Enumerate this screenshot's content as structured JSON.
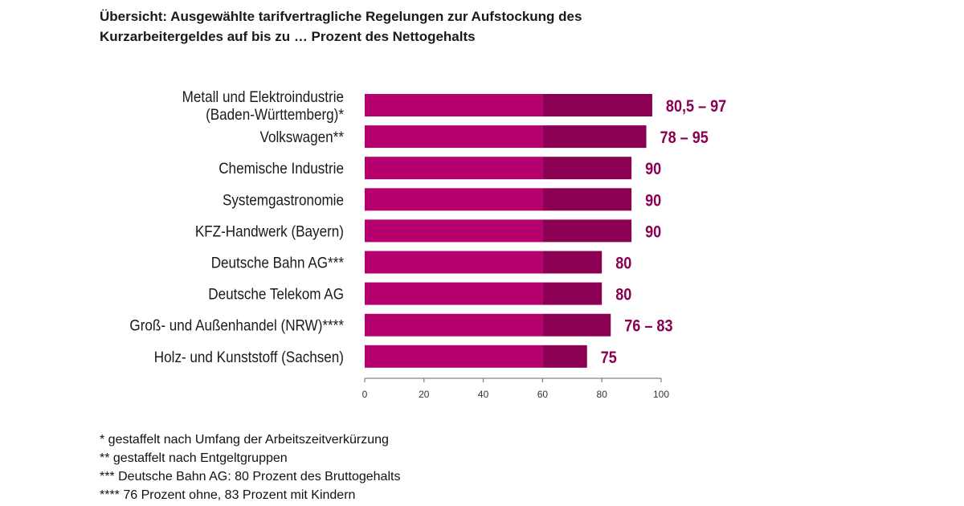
{
  "title": {
    "line1": "Übersicht: Ausgewählte tarifvertragliche Regelungen zur Aufstockung des",
    "line2": "Kurzarbeitergeldes auf bis zu … Prozent des Nettogehalts"
  },
  "colors": {
    "base": "#b5006e",
    "upper": "#8b0052",
    "label": "#8b0052",
    "axis": "#666666"
  },
  "chart_data": {
    "type": "bar",
    "orientation": "horizontal",
    "title": "Übersicht: Ausgewählte tarifvertragliche Regelungen zur Aufstockung des Kurzarbeitergeldes auf bis zu … Prozent des Nettogehalts",
    "categories": [
      [
        "Metall und Elektroindustrie",
        "(Baden-Württemberg)*"
      ],
      [
        "Volkswagen**"
      ],
      [
        "Chemische Industrie"
      ],
      [
        "Systemgastronomie"
      ],
      [
        "KFZ-Handwerk (Bayern)"
      ],
      [
        "Deutsche Bahn AG***"
      ],
      [
        "Deutsche Telekom AG"
      ],
      [
        "Groß- und Außenhandel (NRW)****"
      ],
      [
        "Holz- und Kunststoff (Sachsen)"
      ]
    ],
    "segment_split": 60,
    "values": [
      97,
      95,
      90,
      90,
      90,
      80,
      80,
      83,
      75
    ],
    "value_labels": [
      "80,5 – 97",
      "78 – 95",
      "90",
      "90",
      "90",
      "80",
      "80",
      "76 – 83",
      "75"
    ],
    "xlim": [
      0,
      100
    ],
    "xticks": [
      0,
      20,
      40,
      60,
      80,
      100
    ],
    "xlabel": "",
    "ylabel": "",
    "grid": false
  },
  "footnotes": [
    "* gestaffelt nach Umfang der Arbeitszeitverkürzung",
    "** gestaffelt nach Entgeltgruppen",
    "*** Deutsche Bahn AG: 80 Prozent des Bruttogehalts",
    "**** 76 Prozent ohne, 83 Prozent mit Kindern"
  ]
}
